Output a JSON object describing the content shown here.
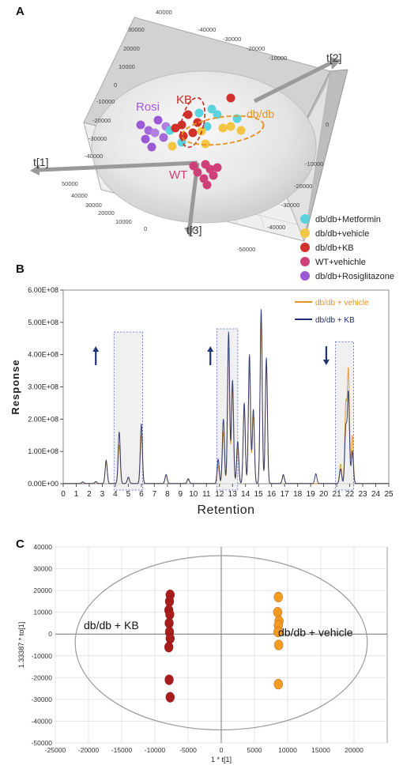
{
  "panel_letters": [
    "A",
    "B",
    "C"
  ],
  "chart_data": [
    {
      "type": "scatter",
      "panel": "A",
      "projection": "3D",
      "axis_labels": [
        "t[1]",
        "t[2]",
        "t[3]"
      ],
      "tick_labels": [
        "-40000",
        "-30000",
        "-20000",
        "-10000",
        "0",
        "10000",
        "20000",
        "30000",
        "40000",
        "50000",
        "-50000"
      ],
      "group_labels": [
        "Rosi",
        "KB",
        "db/db",
        "WT"
      ],
      "legend": [
        {
          "label": "db/db+Metformin",
          "color": "#5bd3df"
        },
        {
          "label": "db/db+vehicle",
          "color": "#f4c542"
        },
        {
          "label": "db/db+KB",
          "color": "#d0312a"
        },
        {
          "label": "WT+vehichle",
          "color": "#cf3f78"
        },
        {
          "label": "db/db+Rosiglitazone",
          "color": "#9b59d6"
        }
      ],
      "legend_placement": "bottom-right"
    },
    {
      "type": "line",
      "panel": "B",
      "xlabel": "Retention",
      "ylabel": "Response",
      "xlim": [
        0,
        25
      ],
      "ylim": [
        0,
        600000000
      ],
      "x_ticks": [
        "0",
        "1",
        "2",
        "3",
        "4",
        "5",
        "6",
        "7",
        "8",
        "9",
        "10",
        "11",
        "12",
        "13",
        "14",
        "15",
        "16",
        "17",
        "18",
        "19",
        "20",
        "21",
        "22",
        "23",
        "24",
        "25"
      ],
      "y_ticks": [
        "0.00E+00",
        "1.00E+08",
        "2.00E+08",
        "3.00E+08",
        "4.00E+08",
        "5.00E+08",
        "6.00E+08"
      ],
      "legend_placement": "top-right",
      "series": [
        {
          "name": "db/db + vehicle",
          "color": "#e8921e",
          "peaks": [
            [
              1.5,
              4000000
            ],
            [
              2.5,
              5000000
            ],
            [
              3.3,
              65000000
            ],
            [
              4.3,
              120000000
            ],
            [
              5.0,
              18000000
            ],
            [
              6.0,
              150000000
            ],
            [
              7.9,
              25000000
            ],
            [
              9.6,
              12000000
            ],
            [
              11.9,
              55000000
            ],
            [
              12.3,
              160000000
            ],
            [
              12.7,
              420000000
            ],
            [
              13.0,
              300000000
            ],
            [
              13.4,
              110000000
            ],
            [
              13.9,
              230000000
            ],
            [
              14.3,
              360000000
            ],
            [
              14.6,
              210000000
            ],
            [
              15.2,
              500000000
            ],
            [
              15.6,
              370000000
            ],
            [
              16.9,
              25000000
            ],
            [
              21.3,
              60000000
            ],
            [
              21.7,
              240000000
            ],
            [
              21.9,
              350000000
            ],
            [
              22.2,
              150000000
            ]
          ]
        },
        {
          "name": "db/db + KB",
          "color": "#1f2f6e",
          "peaks": [
            [
              1.5,
              5000000
            ],
            [
              2.5,
              6000000
            ],
            [
              3.3,
              72000000
            ],
            [
              4.3,
              160000000
            ],
            [
              5.0,
              20000000
            ],
            [
              6.0,
              185000000
            ],
            [
              7.9,
              28000000
            ],
            [
              9.6,
              15000000
            ],
            [
              11.9,
              75000000
            ],
            [
              12.3,
              200000000
            ],
            [
              12.7,
              470000000
            ],
            [
              13.0,
              320000000
            ],
            [
              13.4,
              130000000
            ],
            [
              13.9,
              250000000
            ],
            [
              14.3,
              400000000
            ],
            [
              14.6,
              230000000
            ],
            [
              15.2,
              540000000
            ],
            [
              15.6,
              390000000
            ],
            [
              16.9,
              28000000
            ],
            [
              19.4,
              30000000
            ],
            [
              21.3,
              45000000
            ],
            [
              21.7,
              170000000
            ],
            [
              21.9,
              280000000
            ],
            [
              22.2,
              100000000
            ]
          ]
        }
      ],
      "highlight_boxes": [
        [
          3.9,
          6.1,
          470000000
        ],
        [
          11.8,
          13.4,
          480000000
        ],
        [
          20.9,
          22.3,
          440000000
        ]
      ],
      "arrows": [
        {
          "x": 2.5,
          "direction": "up"
        },
        {
          "x": 11.3,
          "direction": "up"
        },
        {
          "x": 20.2,
          "direction": "down"
        }
      ]
    },
    {
      "type": "scatter",
      "panel": "C",
      "xlabel": "1 * t[1]",
      "ylabel": "1.33387 * to[1]",
      "xlim": [
        -25000,
        25000
      ],
      "ylim": [
        -50000,
        40000
      ],
      "x_ticks": [
        "-25000",
        "-20000",
        "-15000",
        "-10000",
        "-5000",
        "0",
        "5000",
        "10000",
        "15000",
        "20000"
      ],
      "y_ticks": [
        "40000",
        "30000",
        "20000",
        "10000",
        "0",
        "-10000",
        "-20000",
        "-30000",
        "-40000",
        "-50000"
      ],
      "annotations": [
        "db/db + KB",
        "db/db + vehicle"
      ],
      "series": [
        {
          "name": "db/db + KB",
          "color": "#a81c1c",
          "x": [
            -7700,
            -7800,
            -7900,
            -7750,
            -7850,
            -7800,
            -7700,
            -7900,
            -7850,
            -7700
          ],
          "y": [
            18000,
            15000,
            11000,
            9000,
            5000,
            1000,
            -2000,
            -6000,
            -21000,
            -29000
          ]
        },
        {
          "name": "db/db + vehicle",
          "color": "#f39c21",
          "x": [
            8600,
            8500,
            8700,
            8600,
            8550,
            8650,
            8600
          ],
          "y": [
            17000,
            10000,
            6000,
            4000,
            1000,
            -5000,
            -23000
          ]
        }
      ]
    }
  ]
}
